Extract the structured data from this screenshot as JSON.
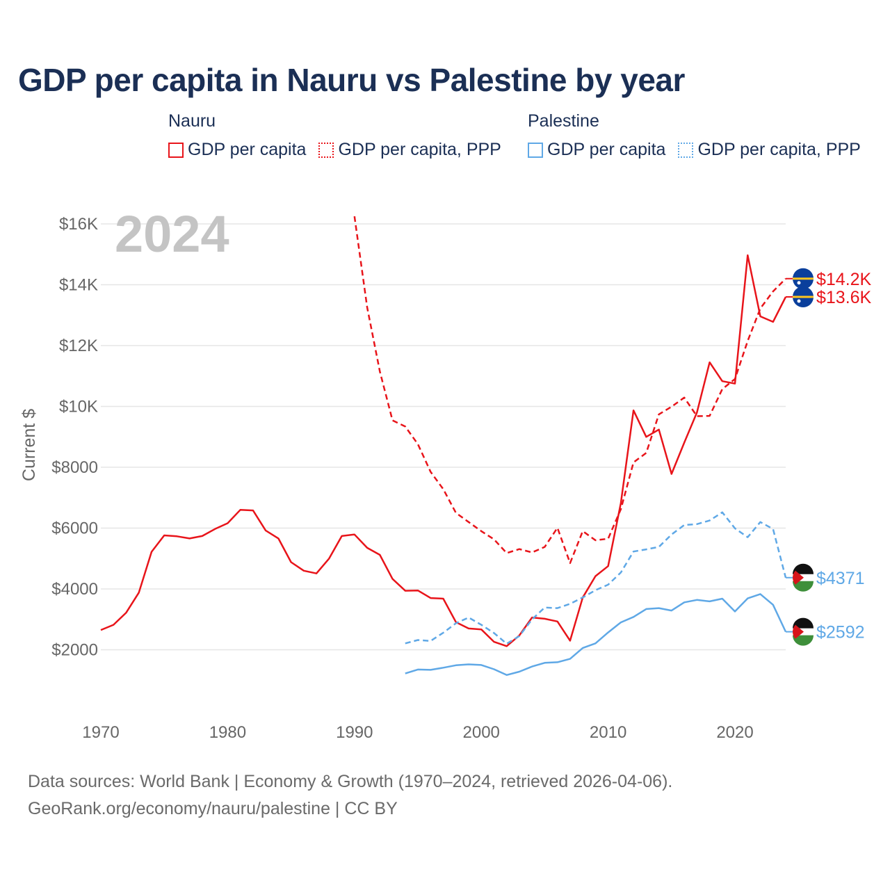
{
  "title": "GDP per capita in Nauru vs Palestine by year",
  "legend": {
    "groups": [
      {
        "country": "Nauru",
        "items": [
          {
            "label": "GDP per capita",
            "style": "solid",
            "color": "#e8141a"
          },
          {
            "label": "GDP per capita, PPP",
            "style": "dotted",
            "color": "#e8141a"
          }
        ]
      },
      {
        "country": "Palestine",
        "items": [
          {
            "label": "GDP per capita",
            "style": "solid",
            "color": "#5fa8e6"
          },
          {
            "label": "GDP per capita, PPP",
            "style": "dotted",
            "color": "#5fa8e6"
          }
        ]
      }
    ]
  },
  "footer": {
    "line1": "Data sources: World Bank | Economy & Growth (1970–2024, retrieved 2026-04-06).",
    "line2": "GeoRank.org/economy/nauru/palestine | CC BY"
  },
  "chart_data": {
    "type": "line",
    "title": "GDP per capita in Nauru vs Palestine by year",
    "year_watermark": "2024",
    "ylabel": "Current $",
    "xlabel": "",
    "xlim": [
      1970,
      2024
    ],
    "ylim": [
      0,
      16000
    ],
    "x_ticks": [
      1970,
      1980,
      1990,
      2000,
      2010,
      2020
    ],
    "y_ticks": [
      {
        "value": 2000,
        "label": "$2000"
      },
      {
        "value": 4000,
        "label": "$4000"
      },
      {
        "value": 6000,
        "label": "$6000"
      },
      {
        "value": 8000,
        "label": "$8000"
      },
      {
        "value": 10000,
        "label": "$10K"
      },
      {
        "value": 12000,
        "label": "$12K"
      },
      {
        "value": 14000,
        "label": "$14K"
      },
      {
        "value": 16000,
        "label": "$16K"
      }
    ],
    "series": [
      {
        "name": "Nauru GDP per capita",
        "country": "Nauru",
        "style": "solid",
        "color": "#e8141a",
        "end_label": "$13.6K",
        "end_value": 13600,
        "x": [
          1970,
          1971,
          1972,
          1973,
          1974,
          1975,
          1976,
          1977,
          1978,
          1979,
          1980,
          1981,
          1982,
          1983,
          1984,
          1985,
          1986,
          1987,
          1988,
          1989,
          1990,
          1991,
          1992,
          1993,
          1994,
          1995,
          1996,
          1997,
          1998,
          1999,
          2000,
          2001,
          2002,
          2003,
          2004,
          2005,
          2006,
          2007,
          2008,
          2009,
          2010,
          2011,
          2012,
          2013,
          2014,
          2015,
          2016,
          2017,
          2018,
          2019,
          2020,
          2021,
          2022,
          2023,
          2024
        ],
        "values": [
          2650,
          2820,
          3220,
          3880,
          5220,
          5760,
          5730,
          5660,
          5740,
          5970,
          6160,
          6600,
          6580,
          5920,
          5660,
          4880,
          4600,
          4510,
          5000,
          5740,
          5790,
          5350,
          5120,
          4330,
          3940,
          3950,
          3700,
          3680,
          2910,
          2700,
          2670,
          2260,
          2120,
          2470,
          3060,
          3020,
          2930,
          2300,
          3720,
          4420,
          4750,
          6820,
          9870,
          9000,
          9240,
          7780,
          8810,
          9800,
          11450,
          10830,
          10750,
          14970,
          12960,
          12780,
          13600
        ]
      },
      {
        "name": "Nauru GDP per capita, PPP",
        "country": "Nauru",
        "style": "dashed",
        "color": "#e8141a",
        "end_label": "$14.2K",
        "end_value": 14200,
        "x": [
          1990,
          1991,
          1992,
          1993,
          1994,
          1995,
          1996,
          1997,
          1998,
          1999,
          2000,
          2001,
          2002,
          2003,
          2004,
          2005,
          2006,
          2007,
          2008,
          2009,
          2010,
          2011,
          2012,
          2013,
          2014,
          2015,
          2016,
          2017,
          2018,
          2019,
          2020,
          2021,
          2022,
          2023,
          2024
        ],
        "values": [
          16250,
          13250,
          11150,
          9540,
          9340,
          8760,
          7850,
          7280,
          6500,
          6200,
          5900,
          5630,
          5180,
          5310,
          5200,
          5380,
          6010,
          4850,
          5900,
          5600,
          5650,
          6620,
          8160,
          8470,
          9740,
          9990,
          10290,
          9680,
          9690,
          10570,
          10900,
          12150,
          13220,
          13780,
          14200
        ]
      },
      {
        "name": "Palestine GDP per capita",
        "country": "Palestine",
        "style": "solid",
        "color": "#5fa8e6",
        "end_label": "$2592",
        "end_value": 2592,
        "x": [
          1994,
          1995,
          1996,
          1997,
          1998,
          1999,
          2000,
          2001,
          2002,
          2003,
          2004,
          2005,
          2006,
          2007,
          2008,
          2009,
          2010,
          2011,
          2012,
          2013,
          2014,
          2015,
          2016,
          2017,
          2018,
          2019,
          2020,
          2021,
          2022,
          2023,
          2024
        ],
        "values": [
          1220,
          1350,
          1340,
          1410,
          1490,
          1520,
          1500,
          1360,
          1170,
          1280,
          1450,
          1570,
          1590,
          1700,
          2060,
          2210,
          2570,
          2900,
          3080,
          3340,
          3370,
          3290,
          3560,
          3640,
          3590,
          3680,
          3260,
          3690,
          3830,
          3480,
          2592
        ]
      },
      {
        "name": "Palestine GDP per capita, PPP",
        "country": "Palestine",
        "style": "dashed",
        "color": "#5fa8e6",
        "end_label": "$4371",
        "end_value": 4371,
        "x": [
          1994,
          1995,
          1996,
          1997,
          1998,
          1999,
          2000,
          2001,
          2002,
          2003,
          2004,
          2005,
          2006,
          2007,
          2008,
          2009,
          2010,
          2011,
          2012,
          2013,
          2014,
          2015,
          2016,
          2017,
          2018,
          2019,
          2020,
          2021,
          2022,
          2023,
          2024
        ],
        "values": [
          2210,
          2320,
          2290,
          2560,
          2870,
          3060,
          2820,
          2550,
          2200,
          2450,
          3000,
          3390,
          3370,
          3510,
          3720,
          3960,
          4140,
          4540,
          5230,
          5300,
          5380,
          5790,
          6100,
          6130,
          6250,
          6520,
          5990,
          5700,
          6200,
          5970,
          4371
        ]
      }
    ]
  }
}
